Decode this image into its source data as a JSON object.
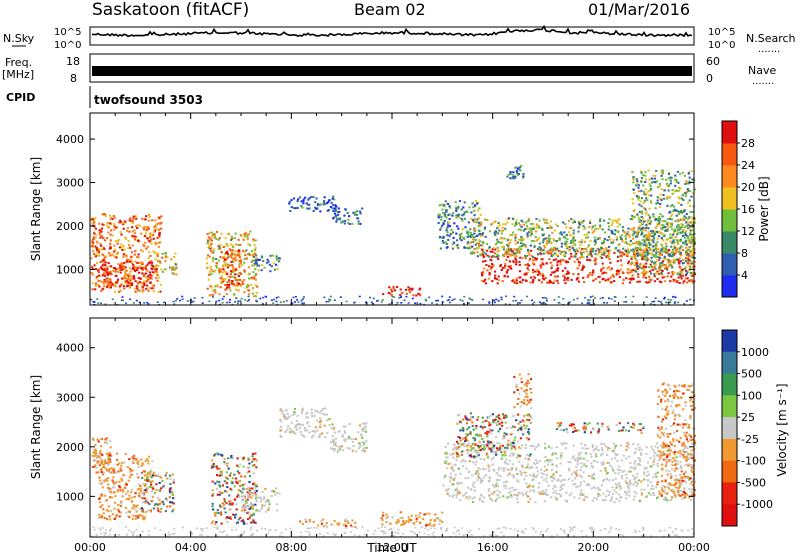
{
  "header": {
    "station": "Saskatoon (fitACF)",
    "beam": "Beam 02",
    "date": "01/Mar/2016"
  },
  "left_labels": {
    "nsky": "N.Sky",
    "freq": "Freq.",
    "freq_unit": "[MHz]",
    "cpid": "CPID"
  },
  "right_labels": {
    "nsearch": "N.Search",
    "nave": "Nave",
    "dots": "......."
  },
  "cpid_text": "twofsound 3503",
  "noise_ticks": {
    "left": [
      "10^5",
      "10^0"
    ],
    "right": [
      "10^5",
      "10^0"
    ]
  },
  "freq_ticks": {
    "left": [
      "18",
      "8"
    ],
    "right": [
      "60",
      "0"
    ]
  },
  "chart_data": [
    {
      "type": "heatmap",
      "name": "power",
      "ylabel": "Slant Range [km]",
      "xlabel": "",
      "ylim": [
        180,
        4600
      ],
      "y_ticks": [
        1000,
        2000,
        3000,
        4000
      ],
      "x_ticks": [
        "00:00",
        "04:00",
        "08:00",
        "12:00",
        "16:00",
        "20:00",
        "00:00"
      ],
      "colorbar": {
        "label": "Power [dB]",
        "tick_values": [
          4,
          8,
          12,
          16,
          20,
          24,
          28
        ],
        "colors": [
          "#1e2cf0",
          "#2e5fb0",
          "#3a8a6a",
          "#6fbf3c",
          "#f0c020",
          "#ff8a1e",
          "#f55a10",
          "#e01010"
        ]
      },
      "regions": [
        {
          "t0": 0.0,
          "t1": 2.8,
          "r0": 500,
          "r1": 2300,
          "level": 0.75
        },
        {
          "t0": 0.3,
          "t1": 2.5,
          "r0": 600,
          "r1": 1200,
          "level": 0.95
        },
        {
          "t0": 2.5,
          "t1": 3.4,
          "r0": 900,
          "r1": 1400,
          "level": 0.55
        },
        {
          "t0": 4.6,
          "t1": 6.6,
          "r0": 400,
          "r1": 1900,
          "level": 0.6
        },
        {
          "t0": 5.2,
          "t1": 5.9,
          "r0": 600,
          "r1": 1500,
          "level": 0.85
        },
        {
          "t0": 6.5,
          "t1": 7.5,
          "r0": 950,
          "r1": 1350,
          "level": 0.3
        },
        {
          "t0": 7.8,
          "t1": 9.8,
          "r0": 2350,
          "r1": 2700,
          "level": 0.15
        },
        {
          "t0": 9.6,
          "t1": 10.8,
          "r0": 2050,
          "r1": 2450,
          "level": 0.25
        },
        {
          "t0": 11.6,
          "t1": 13.2,
          "r0": 420,
          "r1": 620,
          "level": 1.0
        },
        {
          "t0": 13.8,
          "t1": 15.5,
          "r0": 1500,
          "r1": 2600,
          "level": 0.3
        },
        {
          "t0": 15.5,
          "t1": 24.0,
          "r0": 700,
          "r1": 1500,
          "level": 0.9
        },
        {
          "t0": 15.0,
          "t1": 24.0,
          "r0": 1300,
          "r1": 2200,
          "level": 0.45
        },
        {
          "t0": 21.5,
          "t1": 24.0,
          "r0": 900,
          "r1": 3300,
          "level": 0.4
        },
        {
          "t0": 16.5,
          "t1": 17.2,
          "r0": 3100,
          "r1": 3500,
          "level": 0.2
        }
      ]
    },
    {
      "type": "heatmap",
      "name": "velocity",
      "ylabel": "Slant Range [km]",
      "xlabel": "Time UT",
      "ylim": [
        180,
        4600
      ],
      "y_ticks": [
        1000,
        2000,
        3000,
        4000
      ],
      "x_ticks": [
        "00:00",
        "04:00",
        "08:00",
        "12:00",
        "16:00",
        "20:00",
        "00:00"
      ],
      "colorbar": {
        "label": "Velocity [m s⁻¹]",
        "tick_labels": [
          "1000",
          "500",
          "100",
          "25",
          "-25",
          "-100",
          "-500",
          "-1000"
        ],
        "colors": [
          "#1a3aa8",
          "#3a7a9a",
          "#3a9a50",
          "#7ac840",
          "#c8c8c8",
          "#f09a30",
          "#f06a10",
          "#e82010",
          "#e01010"
        ]
      },
      "regions": [
        {
          "t0": 0.3,
          "t1": 2.5,
          "r0": 550,
          "r1": 1900,
          "kind": "neg"
        },
        {
          "t0": 0.0,
          "t1": 0.8,
          "r0": 1500,
          "r1": 2200,
          "kind": "neg"
        },
        {
          "t0": 2.0,
          "t1": 3.3,
          "r0": 700,
          "r1": 1500,
          "kind": "mixed"
        },
        {
          "t0": 4.8,
          "t1": 6.6,
          "r0": 450,
          "r1": 1900,
          "kind": "mixed"
        },
        {
          "t0": 6.0,
          "t1": 7.5,
          "r0": 700,
          "r1": 1200,
          "kind": "gray"
        },
        {
          "t0": 7.5,
          "t1": 9.5,
          "r0": 2200,
          "r1": 2800,
          "kind": "gray"
        },
        {
          "t0": 9.5,
          "t1": 11.0,
          "r0": 1900,
          "r1": 2500,
          "kind": "gray"
        },
        {
          "t0": 8.2,
          "t1": 10.5,
          "r0": 400,
          "r1": 560,
          "kind": "neg"
        },
        {
          "t0": 11.5,
          "t1": 14.0,
          "r0": 420,
          "r1": 700,
          "kind": "neg"
        },
        {
          "t0": 14.0,
          "t1": 24.0,
          "r0": 900,
          "r1": 2100,
          "kind": "gray"
        },
        {
          "t0": 14.5,
          "t1": 17.5,
          "r0": 1800,
          "r1": 2700,
          "kind": "mixed"
        },
        {
          "t0": 16.8,
          "t1": 17.5,
          "r0": 2800,
          "r1": 3500,
          "kind": "neg"
        },
        {
          "t0": 18.5,
          "t1": 22.0,
          "r0": 2300,
          "r1": 2500,
          "kind": "mixed"
        },
        {
          "t0": 22.5,
          "t1": 24.0,
          "r0": 1000,
          "r1": 3300,
          "kind": "neg"
        }
      ]
    }
  ]
}
